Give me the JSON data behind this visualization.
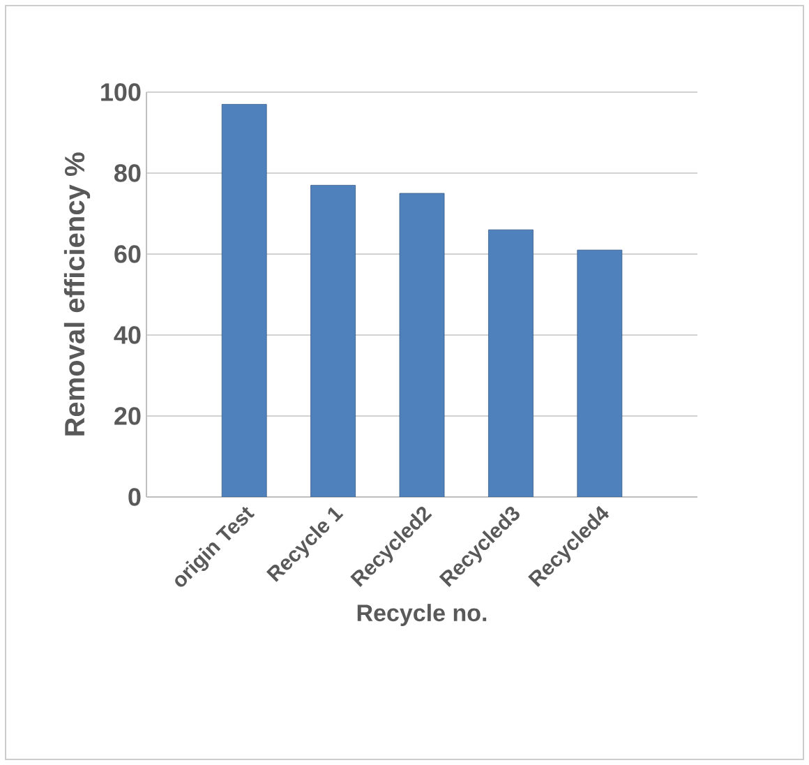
{
  "chart_data": {
    "type": "bar",
    "xlabel": "Recycle no.",
    "ylabel": "Removal efficiency %",
    "categories": [
      "origin Test",
      "Recycle 1",
      "Recycled2",
      "Recycled3",
      "Recycled4"
    ],
    "values": [
      97,
      77,
      75,
      66,
      61
    ],
    "color": "#4f81bd",
    "ylim": [
      0,
      100
    ],
    "yticks": [
      0,
      20,
      40,
      60,
      80,
      100
    ],
    "grid": "y"
  }
}
